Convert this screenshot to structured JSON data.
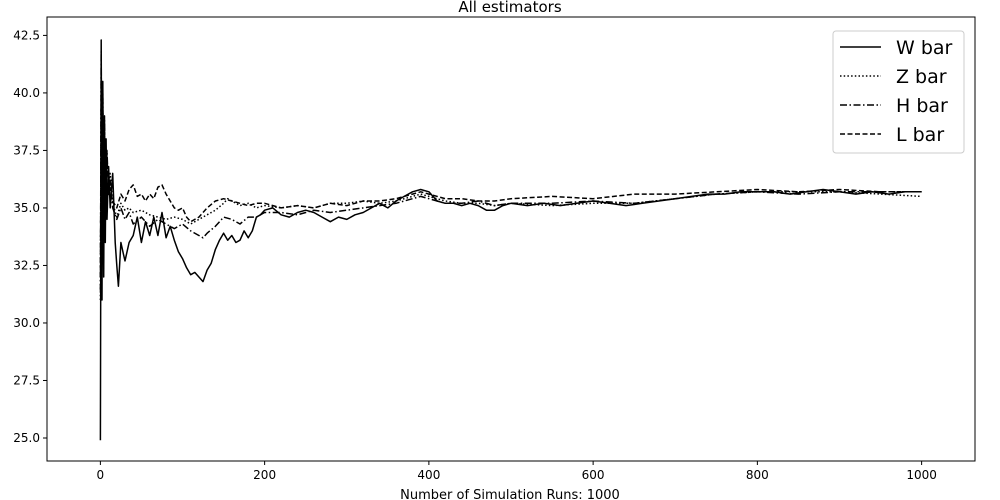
{
  "chart_data": {
    "type": "line",
    "title": "All estimators",
    "xlabel": "Number of Simulation Runs: 1000",
    "ylabel": "",
    "xlim": [
      -65,
      1065
    ],
    "ylim": [
      24.0,
      43.3
    ],
    "xticks": [
      0,
      200,
      400,
      600,
      800,
      1000
    ],
    "yticks": [
      25.0,
      27.5,
      30.0,
      32.5,
      35.0,
      37.5,
      40.0,
      42.5
    ],
    "legend_position": "upper right",
    "grid": false,
    "series": [
      {
        "name": "W bar",
        "style": "solid",
        "color": "#000000",
        "points": [
          [
            0,
            24.9
          ],
          [
            1,
            42.3
          ],
          [
            2,
            31.0
          ],
          [
            3,
            40.5
          ],
          [
            4,
            32.0
          ],
          [
            5,
            39.0
          ],
          [
            6,
            33.5
          ],
          [
            7,
            38.0
          ],
          [
            8,
            34.5
          ],
          [
            10,
            36.8
          ],
          [
            12,
            35.0
          ],
          [
            15,
            36.5
          ],
          [
            18,
            33.5
          ],
          [
            20,
            32.5
          ],
          [
            22,
            31.6
          ],
          [
            25,
            33.5
          ],
          [
            28,
            33.0
          ],
          [
            30,
            32.7
          ],
          [
            35,
            33.5
          ],
          [
            40,
            33.8
          ],
          [
            45,
            34.6
          ],
          [
            50,
            33.5
          ],
          [
            55,
            34.4
          ],
          [
            60,
            33.8
          ],
          [
            65,
            34.6
          ],
          [
            70,
            33.8
          ],
          [
            75,
            34.8
          ],
          [
            80,
            33.7
          ],
          [
            85,
            34.2
          ],
          [
            90,
            33.6
          ],
          [
            95,
            33.1
          ],
          [
            100,
            32.8
          ],
          [
            105,
            32.4
          ],
          [
            110,
            32.1
          ],
          [
            115,
            32.2
          ],
          [
            120,
            32.0
          ],
          [
            125,
            31.8
          ],
          [
            130,
            32.3
          ],
          [
            135,
            32.6
          ],
          [
            140,
            33.2
          ],
          [
            145,
            33.6
          ],
          [
            150,
            33.9
          ],
          [
            155,
            33.6
          ],
          [
            160,
            33.8
          ],
          [
            165,
            33.5
          ],
          [
            170,
            33.6
          ],
          [
            175,
            34.0
          ],
          [
            180,
            33.7
          ],
          [
            185,
            34.0
          ],
          [
            190,
            34.6
          ],
          [
            195,
            34.7
          ],
          [
            200,
            34.9
          ],
          [
            210,
            35.0
          ],
          [
            220,
            34.7
          ],
          [
            230,
            34.6
          ],
          [
            240,
            34.8
          ],
          [
            250,
            34.9
          ],
          [
            260,
            34.8
          ],
          [
            270,
            34.6
          ],
          [
            280,
            34.4
          ],
          [
            290,
            34.6
          ],
          [
            300,
            34.5
          ],
          [
            310,
            34.7
          ],
          [
            320,
            34.8
          ],
          [
            330,
            35.0
          ],
          [
            340,
            35.2
          ],
          [
            350,
            35.0
          ],
          [
            360,
            35.3
          ],
          [
            370,
            35.5
          ],
          [
            380,
            35.7
          ],
          [
            390,
            35.8
          ],
          [
            400,
            35.7
          ],
          [
            410,
            35.3
          ],
          [
            420,
            35.2
          ],
          [
            430,
            35.2
          ],
          [
            440,
            35.1
          ],
          [
            450,
            35.2
          ],
          [
            460,
            35.1
          ],
          [
            470,
            34.9
          ],
          [
            480,
            34.9
          ],
          [
            490,
            35.1
          ],
          [
            500,
            35.2
          ],
          [
            520,
            35.1
          ],
          [
            540,
            35.2
          ],
          [
            560,
            35.1
          ],
          [
            580,
            35.2
          ],
          [
            600,
            35.3
          ],
          [
            620,
            35.2
          ],
          [
            640,
            35.1
          ],
          [
            660,
            35.2
          ],
          [
            680,
            35.3
          ],
          [
            700,
            35.4
          ],
          [
            720,
            35.5
          ],
          [
            740,
            35.6
          ],
          [
            760,
            35.6
          ],
          [
            780,
            35.7
          ],
          [
            800,
            35.7
          ],
          [
            820,
            35.7
          ],
          [
            840,
            35.6
          ],
          [
            860,
            35.7
          ],
          [
            880,
            35.8
          ],
          [
            900,
            35.7
          ],
          [
            920,
            35.6
          ],
          [
            940,
            35.7
          ],
          [
            960,
            35.6
          ],
          [
            980,
            35.7
          ],
          [
            1000,
            35.7
          ]
        ]
      },
      {
        "name": "Z bar",
        "style": "dotted",
        "color": "#000000",
        "points": [
          [
            0,
            31.0
          ],
          [
            1,
            40.8
          ],
          [
            2,
            33.0
          ],
          [
            3,
            39.8
          ],
          [
            4,
            34.0
          ],
          [
            5,
            38.5
          ],
          [
            6,
            35.0
          ],
          [
            8,
            37.2
          ],
          [
            10,
            35.8
          ],
          [
            12,
            36.5
          ],
          [
            15,
            35.2
          ],
          [
            20,
            34.6
          ],
          [
            25,
            35.2
          ],
          [
            30,
            34.9
          ],
          [
            35,
            35.0
          ],
          [
            40,
            34.8
          ],
          [
            50,
            34.9
          ],
          [
            60,
            34.7
          ],
          [
            70,
            34.6
          ],
          [
            80,
            34.5
          ],
          [
            90,
            34.6
          ],
          [
            100,
            34.5
          ],
          [
            110,
            34.3
          ],
          [
            120,
            34.5
          ],
          [
            130,
            34.7
          ],
          [
            140,
            34.9
          ],
          [
            150,
            35.2
          ],
          [
            155,
            35.4
          ],
          [
            160,
            35.3
          ],
          [
            170,
            35.1
          ],
          [
            180,
            35.2
          ],
          [
            190,
            35.0
          ],
          [
            200,
            35.1
          ],
          [
            220,
            35.0
          ],
          [
            240,
            35.1
          ],
          [
            260,
            35.0
          ],
          [
            280,
            35.2
          ],
          [
            300,
            35.2
          ],
          [
            320,
            35.3
          ],
          [
            340,
            35.2
          ],
          [
            360,
            35.3
          ],
          [
            380,
            35.5
          ],
          [
            390,
            35.6
          ],
          [
            400,
            35.5
          ],
          [
            420,
            35.3
          ],
          [
            440,
            35.2
          ],
          [
            460,
            35.2
          ],
          [
            480,
            35.1
          ],
          [
            500,
            35.2
          ],
          [
            550,
            35.1
          ],
          [
            600,
            35.2
          ],
          [
            650,
            35.2
          ],
          [
            700,
            35.4
          ],
          [
            750,
            35.6
          ],
          [
            800,
            35.7
          ],
          [
            850,
            35.7
          ],
          [
            900,
            35.7
          ],
          [
            950,
            35.6
          ],
          [
            1000,
            35.5
          ]
        ]
      },
      {
        "name": "H bar",
        "style": "dashdot",
        "color": "#000000",
        "points": [
          [
            0,
            31.4
          ],
          [
            1,
            41.8
          ],
          [
            2,
            33.0
          ],
          [
            3,
            40.0
          ],
          [
            4,
            33.8
          ],
          [
            5,
            38.8
          ],
          [
            6,
            34.7
          ],
          [
            8,
            37.5
          ],
          [
            10,
            35.5
          ],
          [
            12,
            36.2
          ],
          [
            15,
            35.0
          ],
          [
            18,
            34.7
          ],
          [
            20,
            34.5
          ],
          [
            25,
            35.0
          ],
          [
            30,
            34.5
          ],
          [
            35,
            34.8
          ],
          [
            40,
            34.3
          ],
          [
            50,
            34.6
          ],
          [
            60,
            34.2
          ],
          [
            70,
            34.5
          ],
          [
            80,
            34.3
          ],
          [
            90,
            34.1
          ],
          [
            100,
            34.3
          ],
          [
            110,
            34.0
          ],
          [
            120,
            33.8
          ],
          [
            125,
            33.7
          ],
          [
            130,
            33.9
          ],
          [
            140,
            34.2
          ],
          [
            150,
            34.6
          ],
          [
            160,
            34.5
          ],
          [
            170,
            34.3
          ],
          [
            180,
            34.6
          ],
          [
            190,
            34.6
          ],
          [
            200,
            34.8
          ],
          [
            220,
            34.8
          ],
          [
            240,
            34.7
          ],
          [
            260,
            34.9
          ],
          [
            280,
            34.8
          ],
          [
            300,
            34.9
          ],
          [
            320,
            35.0
          ],
          [
            340,
            35.1
          ],
          [
            360,
            35.2
          ],
          [
            380,
            35.4
          ],
          [
            390,
            35.5
          ],
          [
            400,
            35.4
          ],
          [
            420,
            35.2
          ],
          [
            440,
            35.2
          ],
          [
            460,
            35.3
          ],
          [
            480,
            35.1
          ],
          [
            500,
            35.2
          ],
          [
            550,
            35.2
          ],
          [
            600,
            35.3
          ],
          [
            650,
            35.2
          ],
          [
            700,
            35.4
          ],
          [
            750,
            35.6
          ],
          [
            800,
            35.7
          ],
          [
            850,
            35.6
          ],
          [
            900,
            35.7
          ],
          [
            950,
            35.7
          ],
          [
            1000,
            35.7
          ]
        ]
      },
      {
        "name": "L bar",
        "style": "dashed",
        "color": "#000000",
        "points": [
          [
            0,
            32.0
          ],
          [
            1,
            39.5
          ],
          [
            2,
            35.5
          ],
          [
            3,
            38.3
          ],
          [
            4,
            36.2
          ],
          [
            5,
            37.8
          ],
          [
            6,
            36.5
          ],
          [
            8,
            37.0
          ],
          [
            10,
            36.2
          ],
          [
            12,
            35.8
          ],
          [
            15,
            35.3
          ],
          [
            20,
            35.0
          ],
          [
            25,
            35.6
          ],
          [
            30,
            35.3
          ],
          [
            35,
            35.8
          ],
          [
            40,
            36.0
          ],
          [
            45,
            35.5
          ],
          [
            50,
            35.6
          ],
          [
            55,
            35.3
          ],
          [
            60,
            35.6
          ],
          [
            65,
            35.4
          ],
          [
            70,
            35.9
          ],
          [
            75,
            36.0
          ],
          [
            80,
            35.6
          ],
          [
            85,
            35.3
          ],
          [
            90,
            35.0
          ],
          [
            95,
            34.9
          ],
          [
            100,
            35.0
          ],
          [
            105,
            34.6
          ],
          [
            110,
            34.4
          ],
          [
            115,
            34.5
          ],
          [
            120,
            34.6
          ],
          [
            125,
            34.8
          ],
          [
            130,
            35.0
          ],
          [
            140,
            35.3
          ],
          [
            150,
            35.4
          ],
          [
            160,
            35.3
          ],
          [
            170,
            35.2
          ],
          [
            180,
            35.1
          ],
          [
            190,
            35.2
          ],
          [
            200,
            35.2
          ],
          [
            220,
            35.0
          ],
          [
            240,
            35.1
          ],
          [
            260,
            35.0
          ],
          [
            280,
            35.2
          ],
          [
            300,
            35.1
          ],
          [
            320,
            35.3
          ],
          [
            340,
            35.3
          ],
          [
            360,
            35.4
          ],
          [
            380,
            35.6
          ],
          [
            390,
            35.7
          ],
          [
            400,
            35.6
          ],
          [
            420,
            35.4
          ],
          [
            440,
            35.4
          ],
          [
            460,
            35.3
          ],
          [
            480,
            35.3
          ],
          [
            500,
            35.4
          ],
          [
            550,
            35.5
          ],
          [
            600,
            35.4
          ],
          [
            650,
            35.6
          ],
          [
            700,
            35.6
          ],
          [
            750,
            35.7
          ],
          [
            800,
            35.8
          ],
          [
            850,
            35.7
          ],
          [
            900,
            35.8
          ],
          [
            950,
            35.7
          ],
          [
            1000,
            35.7
          ]
        ]
      }
    ]
  }
}
